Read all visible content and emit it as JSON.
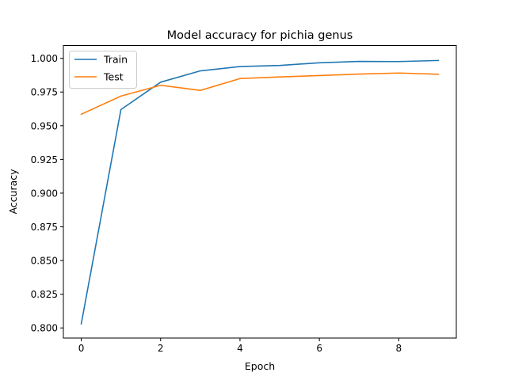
{
  "chart_data": {
    "type": "line",
    "title": "Model accuracy for pichia genus",
    "xlabel": "Epoch",
    "ylabel": "Accuracy",
    "x": [
      0,
      1,
      2,
      3,
      4,
      5,
      6,
      7,
      8,
      9
    ],
    "xlim": [
      -0.45,
      9.45
    ],
    "ylim": [
      0.7925,
      1.0095
    ],
    "xticks": [
      0,
      2,
      4,
      6,
      8
    ],
    "yticks": [
      0.8,
      0.825,
      0.85,
      0.875,
      0.9,
      0.925,
      0.95,
      0.975,
      1.0
    ],
    "ytick_labels": [
      "0.800",
      "0.825",
      "0.850",
      "0.875",
      "0.900",
      "0.925",
      "0.950",
      "0.975",
      "1.000"
    ],
    "grid": false,
    "legend_position": "top-left",
    "series": [
      {
        "name": "Train",
        "color": "#1f77b4",
        "values": [
          0.803,
          0.962,
          0.9823,
          0.9907,
          0.9939,
          0.9947,
          0.9967,
          0.9977,
          0.9976,
          0.9984
        ]
      },
      {
        "name": "Test",
        "color": "#ff7f0e",
        "values": [
          0.9585,
          0.972,
          0.98,
          0.9762,
          0.985,
          0.9862,
          0.9872,
          0.9883,
          0.9891,
          0.9882
        ]
      }
    ]
  }
}
